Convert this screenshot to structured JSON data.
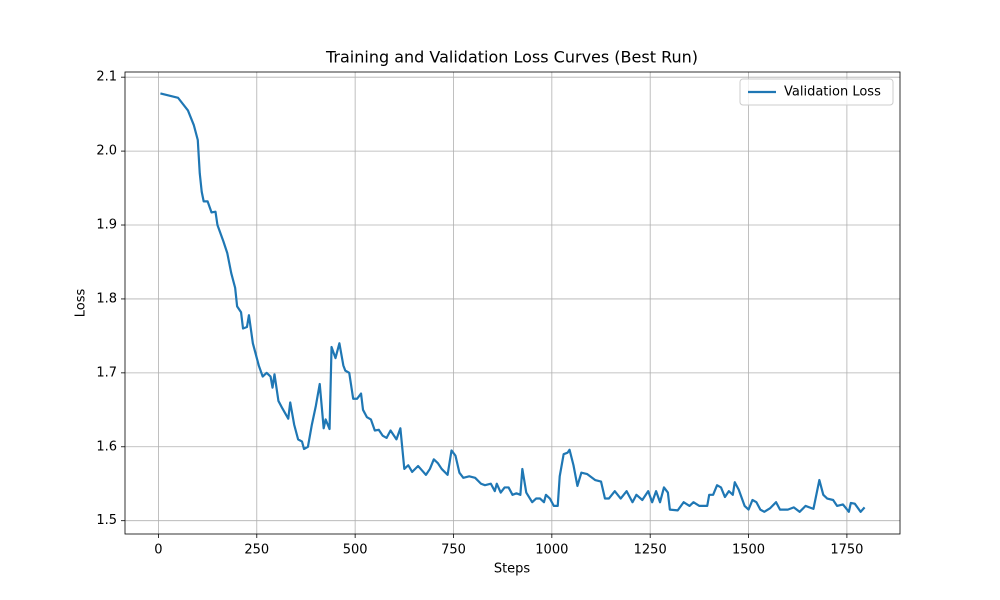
{
  "chart_data": {
    "type": "line",
    "title": "Training and Validation Loss Curves (Best Run)",
    "x_label": "Steps",
    "y_label": "Loss",
    "x": [
      5,
      50,
      75,
      90,
      100,
      105,
      110,
      115,
      125,
      135,
      145,
      150,
      165,
      175,
      185,
      195,
      200,
      210,
      215,
      225,
      230,
      240,
      255,
      265,
      275,
      285,
      290,
      295,
      305,
      315,
      330,
      335,
      345,
      355,
      365,
      370,
      380,
      390,
      400,
      410,
      420,
      425,
      435,
      440,
      450,
      460,
      470,
      475,
      485,
      495,
      505,
      515,
      520,
      530,
      540,
      550,
      560,
      570,
      580,
      590,
      605,
      615,
      625,
      635,
      645,
      660,
      670,
      680,
      690,
      700,
      710,
      720,
      735,
      745,
      755,
      765,
      775,
      790,
      805,
      820,
      830,
      845,
      855,
      860,
      870,
      880,
      890,
      900,
      910,
      920,
      925,
      935,
      950,
      960,
      970,
      980,
      985,
      995,
      1005,
      1015,
      1020,
      1030,
      1040,
      1045,
      1055,
      1065,
      1075,
      1090,
      1110,
      1125,
      1135,
      1145,
      1160,
      1175,
      1190,
      1205,
      1215,
      1230,
      1245,
      1255,
      1265,
      1275,
      1285,
      1295,
      1300,
      1320,
      1335,
      1350,
      1360,
      1375,
      1395,
      1400,
      1410,
      1420,
      1430,
      1440,
      1450,
      1460,
      1465,
      1475,
      1490,
      1500,
      1510,
      1520,
      1530,
      1540,
      1555,
      1570,
      1580,
      1600,
      1615,
      1630,
      1645,
      1665,
      1680,
      1690,
      1700,
      1715,
      1725,
      1740,
      1755,
      1760,
      1770,
      1785,
      1795
    ],
    "series": [
      {
        "name": "Validation Loss",
        "color": "#1f77b4",
        "values": [
          2.078,
          2.072,
          2.055,
          2.035,
          2.015,
          1.97,
          1.945,
          1.932,
          1.932,
          1.917,
          1.918,
          1.9,
          1.878,
          1.862,
          1.835,
          1.815,
          1.79,
          1.782,
          1.76,
          1.762,
          1.778,
          1.74,
          1.71,
          1.695,
          1.7,
          1.695,
          1.68,
          1.698,
          1.662,
          1.652,
          1.638,
          1.66,
          1.63,
          1.61,
          1.607,
          1.597,
          1.6,
          1.63,
          1.655,
          1.685,
          1.625,
          1.637,
          1.624,
          1.735,
          1.72,
          1.74,
          1.71,
          1.703,
          1.7,
          1.665,
          1.665,
          1.672,
          1.65,
          1.64,
          1.637,
          1.622,
          1.623,
          1.615,
          1.612,
          1.622,
          1.61,
          1.625,
          1.57,
          1.575,
          1.566,
          1.574,
          1.568,
          1.562,
          1.57,
          1.583,
          1.578,
          1.57,
          1.562,
          1.595,
          1.588,
          1.565,
          1.558,
          1.56,
          1.558,
          1.55,
          1.548,
          1.55,
          1.54,
          1.55,
          1.538,
          1.545,
          1.545,
          1.535,
          1.537,
          1.535,
          1.57,
          1.538,
          1.525,
          1.53,
          1.53,
          1.525,
          1.535,
          1.53,
          1.52,
          1.52,
          1.56,
          1.59,
          1.592,
          1.596,
          1.575,
          1.547,
          1.565,
          1.563,
          1.555,
          1.553,
          1.53,
          1.53,
          1.54,
          1.53,
          1.54,
          1.525,
          1.535,
          1.528,
          1.54,
          1.525,
          1.54,
          1.525,
          1.545,
          1.538,
          1.515,
          1.514,
          1.525,
          1.52,
          1.525,
          1.52,
          1.52,
          1.535,
          1.535,
          1.548,
          1.545,
          1.532,
          1.54,
          1.535,
          1.552,
          1.542,
          1.52,
          1.515,
          1.528,
          1.525,
          1.515,
          1.512,
          1.517,
          1.525,
          1.515,
          1.515,
          1.518,
          1.512,
          1.52,
          1.516,
          1.555,
          1.535,
          1.53,
          1.528,
          1.52,
          1.522,
          1.512,
          1.524,
          1.523,
          1.512,
          1.518
        ]
      }
    ],
    "xlim": [
      -85,
      1885
    ],
    "ylim": [
      1.482,
      2.107
    ],
    "xticks": [
      0,
      250,
      500,
      750,
      1000,
      1250,
      1500,
      1750
    ],
    "yticks": [
      1.5,
      1.6,
      1.7,
      1.8,
      1.9,
      {
        "value": 2,
        "label": "2.0"
      },
      2.1
    ],
    "grid": true,
    "legend": "upper right"
  }
}
